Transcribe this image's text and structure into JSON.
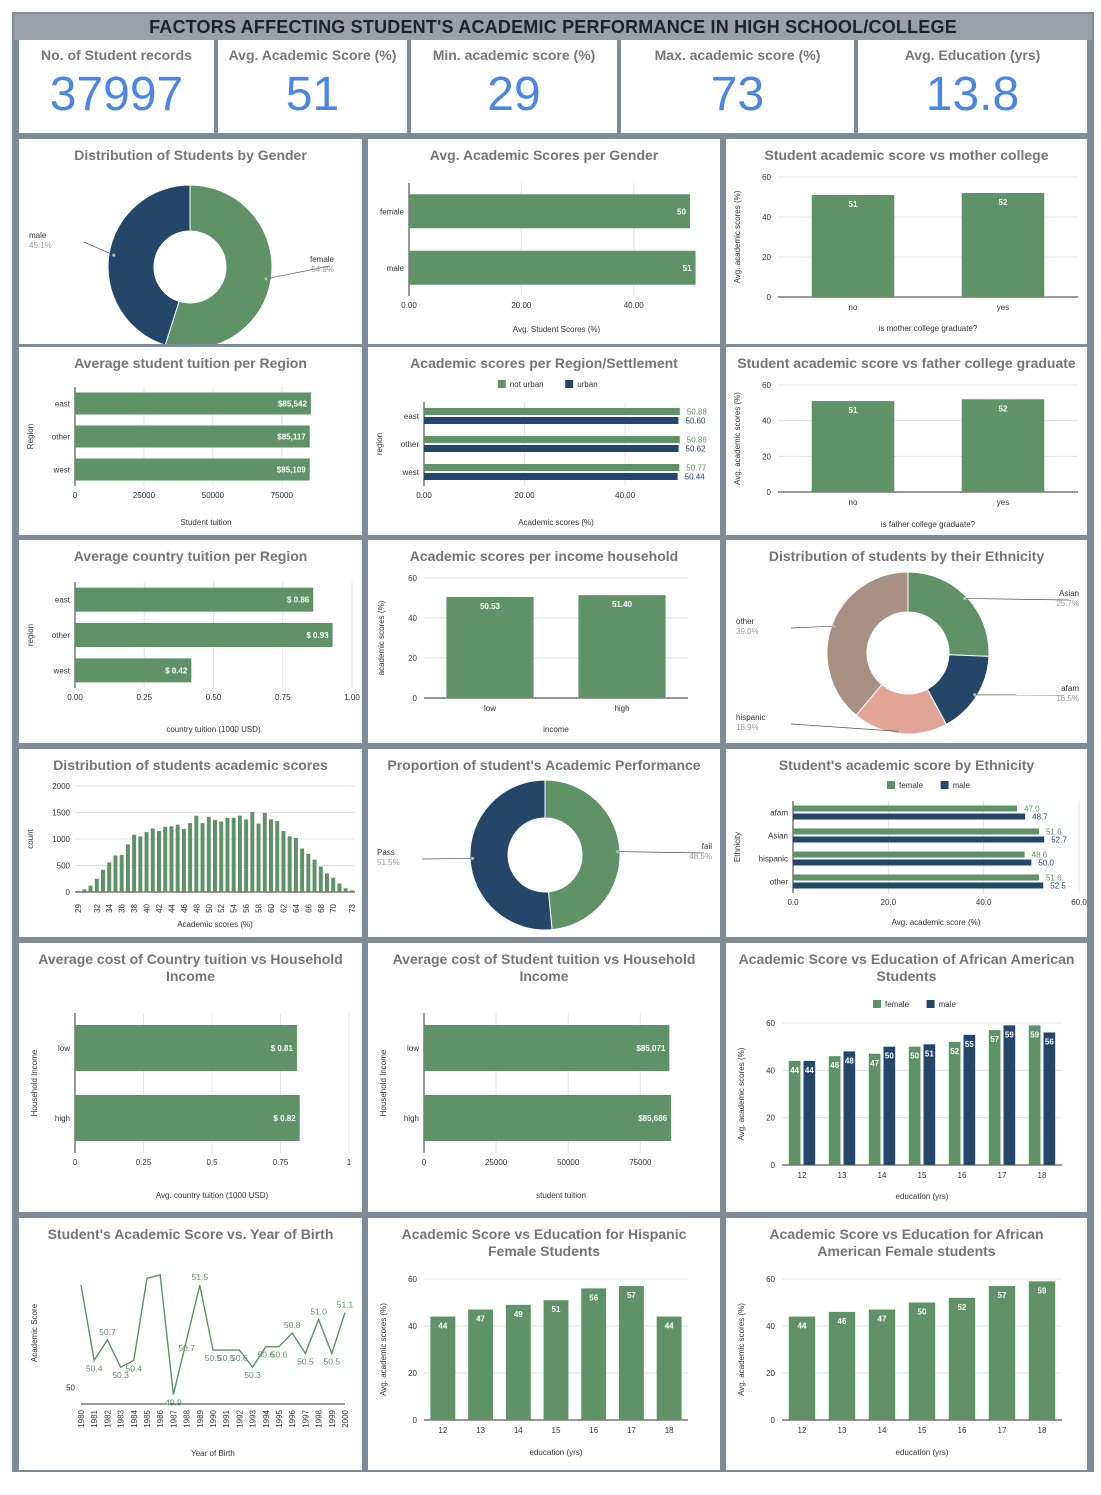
{
  "header": {
    "title": "FACTORS AFFECTING STUDENT'S ACADEMIC PERFORMANCE IN HIGH SCHOOL/COLLEGE"
  },
  "kpis": [
    {
      "label": "No. of Student records",
      "value": "37997"
    },
    {
      "label": "Avg. Academic Score (%)",
      "value": "51"
    },
    {
      "label": "Min. academic score (%)",
      "value": "29"
    },
    {
      "label": "Max. academic score (%)",
      "value": "73"
    },
    {
      "label": "Avg. Education (yrs)",
      "value": "13.8"
    }
  ],
  "colors": {
    "green": "#5f9266",
    "navy": "#234669",
    "brown": "#a89182",
    "salmon": "#e2a597",
    "kpi": "#4a86e8"
  },
  "chart_data": [
    {
      "id": "gender-dist",
      "type": "pie",
      "title": "Distribution of Students by Gender",
      "slices": [
        {
          "label": "female",
          "value": 54.9,
          "pct_label": "54.9%",
          "color": "#5f9266"
        },
        {
          "label": "male",
          "value": 45.1,
          "pct_label": "45.1%",
          "color": "#234669"
        }
      ]
    },
    {
      "id": "scores-gender",
      "type": "bar",
      "orientation": "horizontal",
      "title": "Avg. Academic Scores per Gender",
      "categories": [
        "female",
        "male"
      ],
      "series": [
        {
          "values": [
            50,
            51
          ],
          "labels": [
            "50",
            "51"
          ]
        }
      ],
      "xlabel": "Avg. Student Scores (%)",
      "ylabel": "",
      "xlim": [
        0,
        52.5
      ],
      "ticks": [
        "0.00",
        "20.00",
        "40.00"
      ],
      "tick_values": [
        0,
        20,
        40
      ]
    },
    {
      "id": "mother-college",
      "type": "bar",
      "orientation": "vertical",
      "title": "Student academic score vs mother college",
      "categories": [
        "no",
        "yes"
      ],
      "series": [
        {
          "values": [
            51,
            52
          ],
          "labels": [
            "51",
            "52"
          ]
        }
      ],
      "xlabel": "is mother college graduate?",
      "ylabel": "Avg. academic scores (%)",
      "ylim": [
        0,
        60
      ],
      "ticks": [
        "0",
        "20",
        "40",
        "60"
      ],
      "tick_values": [
        0,
        20,
        40,
        60
      ]
    },
    {
      "id": "tuition-region",
      "type": "bar",
      "orientation": "horizontal",
      "title": "Average student tuition per Region",
      "categories": [
        "east",
        "other",
        "west"
      ],
      "series": [
        {
          "values": [
            85542,
            85117,
            85109
          ],
          "labels": [
            "$85,542",
            "$85,117",
            "$85,109"
          ]
        }
      ],
      "xlabel": "Student tuition",
      "ylabel": "Region",
      "xlim": [
        0,
        95000
      ],
      "ticks": [
        "0",
        "25000",
        "50000",
        "75000"
      ],
      "tick_values": [
        0,
        25000,
        50000,
        75000
      ]
    },
    {
      "id": "scores-region",
      "type": "bar",
      "orientation": "horizontal",
      "title": "Academic scores per Region/Settlement",
      "categories": [
        "east",
        "other",
        "west"
      ],
      "series": [
        {
          "name": "not urban",
          "values": [
            50.88,
            50.86,
            50.77
          ],
          "labels": [
            "50.88",
            "50.86",
            "50.77"
          ]
        },
        {
          "name": "urban",
          "values": [
            50.6,
            50.62,
            50.44
          ],
          "labels": [
            "50.60",
            "50.62",
            "50.44"
          ]
        }
      ],
      "legend": "top",
      "xlabel": "Academic scores (%)",
      "ylabel": "region",
      "xlim": [
        0,
        52.5
      ],
      "ticks": [
        "0.00",
        "20.00",
        "40.00"
      ],
      "tick_values": [
        0,
        20,
        40
      ]
    },
    {
      "id": "father-college",
      "type": "bar",
      "orientation": "vertical",
      "title": "Student academic score vs father college graduate",
      "categories": [
        "no",
        "yes"
      ],
      "series": [
        {
          "values": [
            51,
            52
          ],
          "labels": [
            "51",
            "52"
          ]
        }
      ],
      "xlabel": "is father college graduate?",
      "ylabel": "Avg. academic scores (%)",
      "ylim": [
        0,
        60
      ],
      "ticks": [
        "0",
        "20",
        "40",
        "60"
      ],
      "tick_values": [
        0,
        20,
        40,
        60
      ]
    },
    {
      "id": "country-tuition-region",
      "type": "bar",
      "orientation": "horizontal",
      "title": "Average country tuition per Region",
      "categories": [
        "east",
        "other",
        "west"
      ],
      "series": [
        {
          "values": [
            0.86,
            0.93,
            0.42
          ],
          "labels": [
            "$ 0.86",
            "$ 0.93",
            "$ 0.42"
          ]
        }
      ],
      "xlabel": "country tuition (1000 USD)",
      "ylabel": "region",
      "xlim": [
        0,
        1.0
      ],
      "ticks": [
        "0.00",
        "0.25",
        "0.50",
        "0.75",
        "1.00"
      ],
      "tick_values": [
        0,
        0.25,
        0.5,
        0.75,
        1.0
      ]
    },
    {
      "id": "scores-income",
      "type": "bar",
      "orientation": "vertical",
      "title": "Academic scores per income household",
      "categories": [
        "low",
        "high"
      ],
      "series": [
        {
          "values": [
            50.53,
            51.4
          ],
          "labels": [
            "50.53",
            "51.40"
          ]
        }
      ],
      "xlabel": "income",
      "ylabel": "academic scores (%)",
      "ylim": [
        0,
        60
      ],
      "ticks": [
        "0",
        "20",
        "40",
        "60"
      ],
      "tick_values": [
        0,
        20,
        40,
        60
      ]
    },
    {
      "id": "ethnicity-dist",
      "type": "pie",
      "title": "Distribution of students by their Ethnicity",
      "slices": [
        {
          "label": "Asian",
          "value": 25.7,
          "pct_label": "25.7%",
          "color": "#5f9266"
        },
        {
          "label": "afam",
          "value": 16.5,
          "pct_label": "16.5%",
          "color": "#234669"
        },
        {
          "label": "hispanic",
          "value": 18.9,
          "pct_label": "18.9%",
          "color": "#e2a597"
        },
        {
          "label": "other",
          "value": 39.0,
          "pct_label": "39.0%",
          "color": "#a89182"
        }
      ]
    },
    {
      "id": "score-distribution",
      "type": "bar",
      "orientation": "vertical",
      "title": "Distribution of students academic scores",
      "categories": [
        "29",
        "30",
        "31",
        "32",
        "33",
        "34",
        "35",
        "36",
        "37",
        "38",
        "39",
        "40",
        "41",
        "42",
        "43",
        "44",
        "45",
        "46",
        "47",
        "48",
        "49",
        "50",
        "51",
        "52",
        "53",
        "54",
        "55",
        "56",
        "57",
        "58",
        "59",
        "60",
        "61",
        "62",
        "63",
        "64",
        "65",
        "66",
        "67",
        "68",
        "69",
        "70",
        "71",
        "72",
        "73"
      ],
      "series": [
        {
          "values": [
            20,
            50,
            120,
            250,
            420,
            560,
            690,
            700,
            900,
            1080,
            1050,
            1130,
            1200,
            1150,
            1230,
            1240,
            1270,
            1190,
            1300,
            1440,
            1300,
            1420,
            1360,
            1330,
            1400,
            1400,
            1440,
            1370,
            1510,
            1290,
            1490,
            1370,
            1340,
            1150,
            1050,
            1020,
            820,
            720,
            610,
            480,
            350,
            270,
            160,
            70,
            30
          ]
        }
      ],
      "xlabel": "Academic scores (%)",
      "ylabel": "count",
      "ylim": [
        0,
        2000
      ],
      "ticks": [
        "0",
        "500",
        "1000",
        "1500",
        "2000"
      ],
      "tick_values": [
        0,
        500,
        1000,
        1500,
        2000
      ],
      "xticks": [
        "29",
        "32",
        "34",
        "36",
        "38",
        "40",
        "42",
        "44",
        "46",
        "48",
        "50",
        "52",
        "54",
        "56",
        "58",
        "60",
        "62",
        "64",
        "66",
        "68",
        "70",
        "73"
      ]
    },
    {
      "id": "pass-fail",
      "type": "pie",
      "title": "Proportion of student's Academic Performance",
      "slices": [
        {
          "label": "fail",
          "value": 48.5,
          "pct_label": "48.5%",
          "color": "#5f9266"
        },
        {
          "label": "Pass",
          "value": 51.5,
          "pct_label": "51.5%",
          "color": "#234669"
        }
      ]
    },
    {
      "id": "score-ethnicity",
      "type": "bar",
      "orientation": "horizontal",
      "title": "Student's academic score by Ethnicity",
      "categories": [
        "afam",
        "Asian",
        "hispanic",
        "other"
      ],
      "series": [
        {
          "name": "female",
          "values": [
            47.0,
            51.6,
            48.6,
            51.6
          ],
          "labels": [
            "47.0",
            "51.6",
            "48.6",
            "51.6"
          ]
        },
        {
          "name": "male",
          "values": [
            48.7,
            52.7,
            50.0,
            52.5
          ],
          "labels": [
            "48.7",
            "52.7",
            "50.0",
            "52.5"
          ]
        }
      ],
      "legend": "top",
      "xlabel": "Avg. academic score (%)",
      "ylabel": "Ethnicity",
      "xlim": [
        0,
        60
      ],
      "ticks": [
        "0.0",
        "20.0",
        "40.0",
        "60.0"
      ],
      "tick_values": [
        0,
        20,
        40,
        60
      ]
    },
    {
      "id": "country-tuition-income",
      "type": "bar",
      "orientation": "horizontal",
      "title": "Average cost of Country tuition vs Household Income",
      "categories": [
        "low",
        "high"
      ],
      "series": [
        {
          "values": [
            0.81,
            0.82
          ],
          "labels": [
            "$ 0.81",
            "$ 0.82"
          ]
        }
      ],
      "xlabel": "Avg. country tuition (1000 USD)",
      "ylabel": "Household Income",
      "xlim": [
        0,
        1
      ],
      "ticks": [
        "0",
        "0.25",
        "0.5",
        "0.75",
        "1"
      ],
      "tick_values": [
        0,
        0.25,
        0.5,
        0.75,
        1
      ]
    },
    {
      "id": "student-tuition-income",
      "type": "bar",
      "orientation": "horizontal",
      "title": "Average cost of Student tuition vs Household Income",
      "categories": [
        "low",
        "high"
      ],
      "series": [
        {
          "values": [
            85071,
            85686
          ],
          "labels": [
            "$85,071",
            "$85,686"
          ]
        }
      ],
      "xlabel": "student tuition",
      "ylabel": "Household Income",
      "xlim": [
        0,
        95000
      ],
      "ticks": [
        "0",
        "25000",
        "50000",
        "75000"
      ],
      "tick_values": [
        0,
        25000,
        50000,
        75000
      ]
    },
    {
      "id": "afam-education",
      "type": "bar",
      "orientation": "vertical",
      "title": "Academic Score vs Education of African American Students",
      "categories": [
        "12",
        "13",
        "14",
        "15",
        "16",
        "17",
        "18"
      ],
      "series": [
        {
          "name": "female",
          "values": [
            44,
            46,
            47,
            50,
            52,
            57,
            59
          ],
          "labels": [
            "44",
            "46",
            "47",
            "50",
            "52",
            "57",
            "59"
          ]
        },
        {
          "name": "male",
          "values": [
            44,
            48,
            50,
            51,
            55,
            59,
            56
          ],
          "labels": [
            "44",
            "48",
            "50",
            "51",
            "55",
            "59",
            "56"
          ]
        }
      ],
      "legend": "top",
      "xlabel": "education (yrs)",
      "ylabel": "Avg. academic scores (%)",
      "ylim": [
        0,
        60
      ],
      "ticks": [
        "0",
        "20",
        "40",
        "60"
      ],
      "tick_values": [
        0,
        20,
        40,
        60
      ]
    },
    {
      "id": "score-birth-year",
      "type": "line",
      "title": "Student's Academic Score vs. Year of Birth",
      "x": [
        "1980",
        "1981",
        "1982",
        "1983",
        "1984",
        "1985",
        "1986",
        "1987",
        "1988",
        "1989",
        "1990",
        "1991",
        "1992",
        "1993",
        "1994",
        "1995",
        "1996",
        "1997",
        "1998",
        "1999",
        "2000"
      ],
      "series": [
        {
          "values": [
            51.5,
            50.4,
            50.7,
            50.3,
            50.4,
            51.6,
            51.65,
            49.9,
            50.7,
            51.5,
            50.55,
            50.55,
            50.55,
            50.3,
            50.6,
            50.6,
            50.8,
            50.5,
            51.0,
            50.5,
            51.1
          ],
          "labels": [
            "",
            "50.4",
            "50.7",
            "50.3",
            "50.4",
            "",
            "",
            "49.9",
            "50.7",
            "51.5",
            "50.5",
            "50.5",
            "50.6",
            "50.3",
            "50.6",
            "50.6",
            "50.8",
            "50.5",
            "51.0",
            "50.5",
            "51.1"
          ]
        }
      ],
      "xlabel": "Year of Birth",
      "ylabel": "Academic Score",
      "ylim": [
        49.85,
        51.75
      ],
      "ticks": [
        "50"
      ],
      "tick_values": [
        50
      ]
    },
    {
      "id": "hispanic-female-education",
      "type": "bar",
      "orientation": "vertical",
      "title": "Academic Score vs Education for Hispanic Female Students",
      "categories": [
        "12",
        "13",
        "14",
        "15",
        "16",
        "17",
        "18"
      ],
      "series": [
        {
          "values": [
            44,
            47,
            49,
            51,
            56,
            57,
            44
          ],
          "labels": [
            "44",
            "47",
            "49",
            "51",
            "56",
            "57",
            "44"
          ]
        }
      ],
      "xlabel": "education (yrs)",
      "ylabel": "Avg. academic scores (%)",
      "ylim": [
        0,
        60
      ],
      "ticks": [
        "0",
        "20",
        "40",
        "60"
      ],
      "tick_values": [
        0,
        20,
        40,
        60
      ]
    },
    {
      "id": "afam-female-education",
      "type": "bar",
      "orientation": "vertical",
      "title": "Academic Score vs Education for African American Female students",
      "categories": [
        "12",
        "13",
        "14",
        "15",
        "16",
        "17",
        "18"
      ],
      "series": [
        {
          "values": [
            44,
            46,
            47,
            50,
            52,
            57,
            59
          ],
          "labels": [
            "44",
            "46",
            "47",
            "50",
            "52",
            "57",
            "59"
          ]
        }
      ],
      "xlabel": "education (yrs)",
      "ylabel": "Avg. academic scores (%)",
      "ylim": [
        0,
        60
      ],
      "ticks": [
        "0",
        "20",
        "40",
        "60"
      ],
      "tick_values": [
        0,
        20,
        40,
        60
      ]
    }
  ]
}
